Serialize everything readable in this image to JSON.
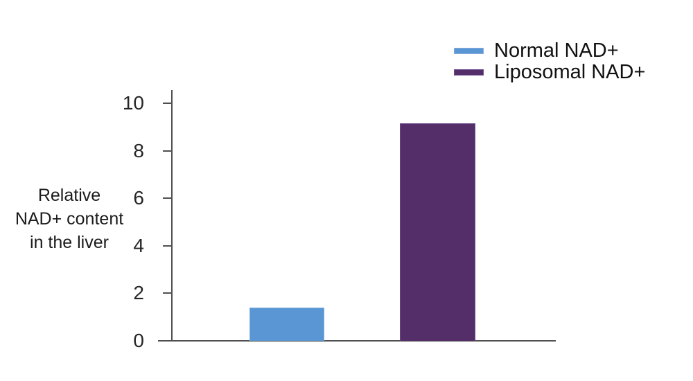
{
  "chart_data": {
    "type": "bar",
    "title": "",
    "categories": [
      "Normal NAD+",
      "Liposomal NAD+"
    ],
    "values": [
      1.4,
      9.15
    ],
    "bar_colors": [
      "#5996D3",
      "#542E69"
    ],
    "bar_border_colors": [
      "#86ADDE",
      "#6F4C8F"
    ],
    "xlabel": "",
    "ylabel": "Relative NAD+ content in the liver",
    "ylabel_lines": [
      "Relative",
      "NAD+ content",
      "in the liver"
    ],
    "yticks": [
      0,
      2,
      4,
      6,
      8,
      10
    ],
    "ylim": [
      0,
      10.6
    ],
    "grid": false,
    "legend": {
      "position": "top-right",
      "entries": [
        {
          "label": "Normal NAD+",
          "color": "#5996D3"
        },
        {
          "label": "Liposomal NAD+",
          "color": "#542E69"
        }
      ]
    },
    "axis_color": "#4f4f4f",
    "text_color": "#1b1b1b"
  }
}
